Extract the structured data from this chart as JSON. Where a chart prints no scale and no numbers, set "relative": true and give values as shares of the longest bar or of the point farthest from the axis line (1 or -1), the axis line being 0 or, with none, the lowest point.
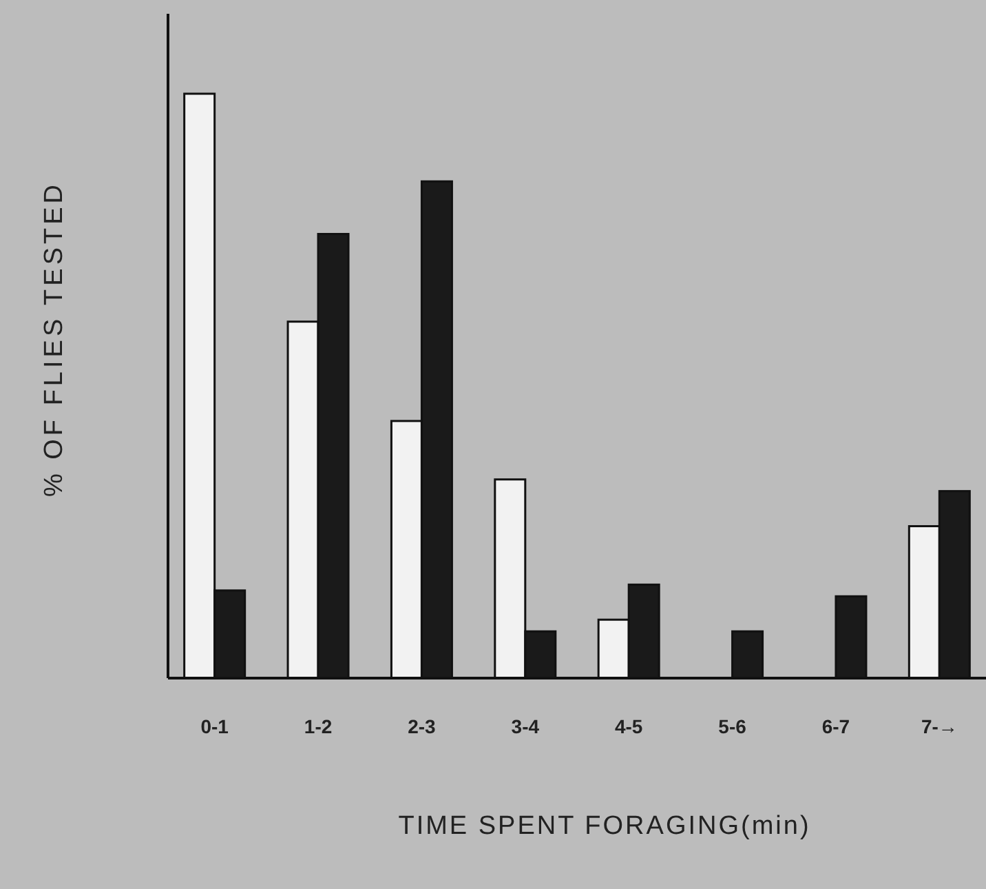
{
  "chart_data": {
    "type": "bar",
    "relative": true,
    "xlabel": "TIME SPENT FORAGING(min)",
    "ylabel": "% OF FLIES TESTED",
    "categories": [
      "0-1",
      "1-2",
      "2-3",
      "3-4",
      "4-5",
      "5-6",
      "6-7",
      "7-→"
    ],
    "series": [
      {
        "color": "#f2f2f2",
        "values": [
          1,
          0.61,
          0.44,
          0.34,
          0.1,
          0,
          0,
          0.26
        ]
      },
      {
        "color": "#1a1a1a",
        "values": [
          0.15,
          0.76,
          0.85,
          0.08,
          0.16,
          0.08,
          0.14,
          0.32
        ]
      }
    ]
  }
}
